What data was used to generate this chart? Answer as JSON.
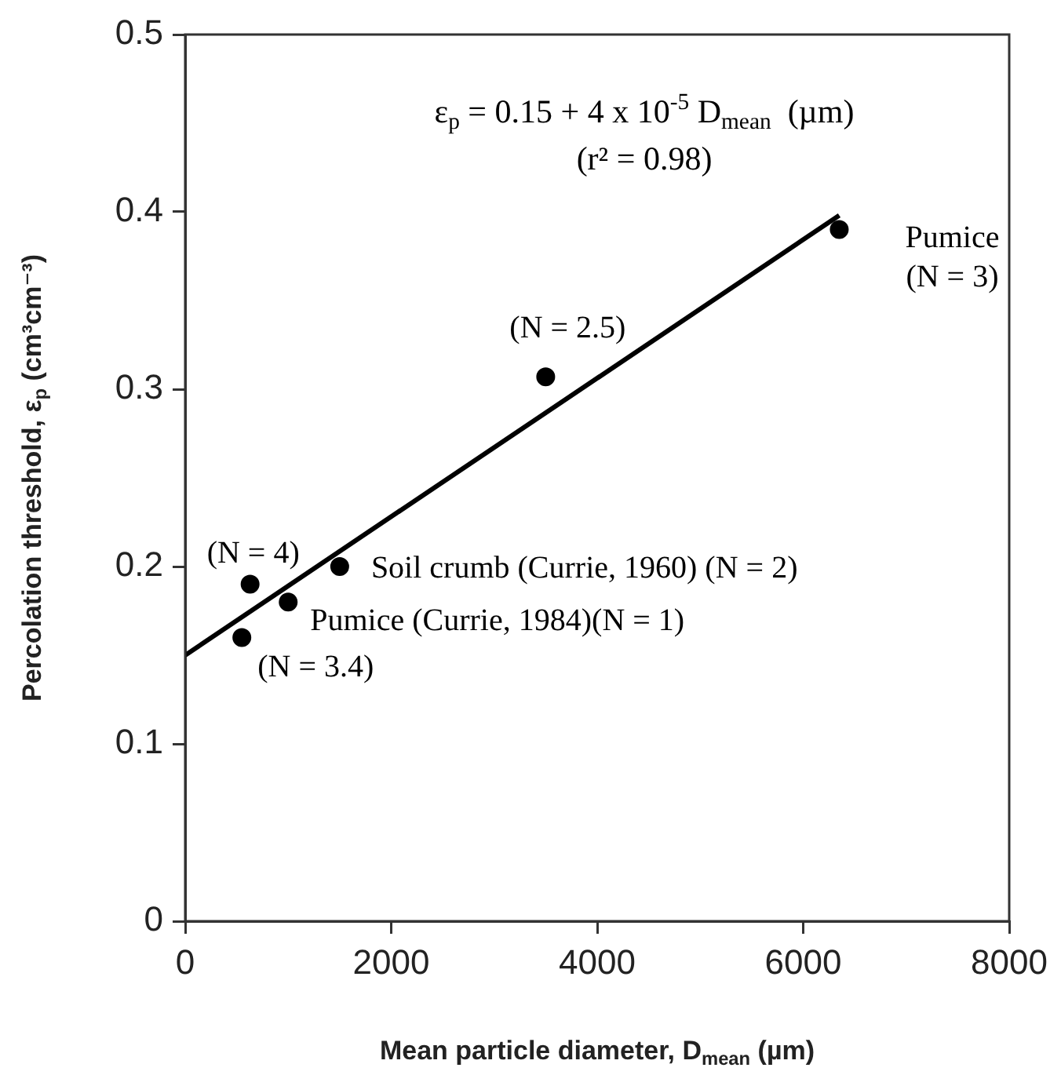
{
  "chart_data": {
    "type": "scatter",
    "xlabel": "Mean particle diameter, D$_{mean}$ (µm)",
    "ylabel": "Percolation threshold, ε$_{p}$ (cm³cm⁻³)",
    "xlim": [
      0,
      8000
    ],
    "xticks": [
      0,
      2000,
      4000,
      6000,
      8000
    ],
    "ylim": [
      0,
      0.5
    ],
    "yticks": [
      0,
      0.1,
      0.2,
      0.3,
      0.4,
      0.5
    ],
    "grid": false,
    "legend": false,
    "marker": "circle",
    "series": [
      {
        "color": "#000000",
        "x": [
          6350,
          3500,
          630,
          1500,
          1000,
          550
        ],
        "values": [
          0.39,
          0.307,
          0.19,
          0.2,
          0.18,
          0.16
        ]
      },
      {
        "type": "line",
        "color": "#000000",
        "marker": "none",
        "line_style": "solid",
        "x": [
          0,
          6350
        ],
        "values": [
          0.15,
          0.398
        ]
      }
    ],
    "annotations": [
      "ε$_{p}$ = 0.15 + 4 x 10$^{-5}$ D$_{mean}$  (µm)",
      "(r² = 0.98)",
      {
        "text": "Pumice",
        "x": 6350,
        "y": 0.39
      },
      {
        "text": "(N = 3)",
        "x": 6350,
        "y": 0.39
      },
      {
        "text": "(N = 2.5)",
        "x": 3500,
        "y": 0.307
      },
      {
        "text": "(N = 4)",
        "x": 630,
        "y": 0.19
      },
      {
        "text": "Soil crumb (Currie, 1960) (N = 2)",
        "x": 1500,
        "y": 0.2
      },
      {
        "text": "Pumice (Currie, 1984)(N = 1)",
        "x": 1000,
        "y": 0.18
      },
      {
        "text": "(N = 3.4)",
        "x": 550,
        "y": 0.16
      }
    ]
  }
}
